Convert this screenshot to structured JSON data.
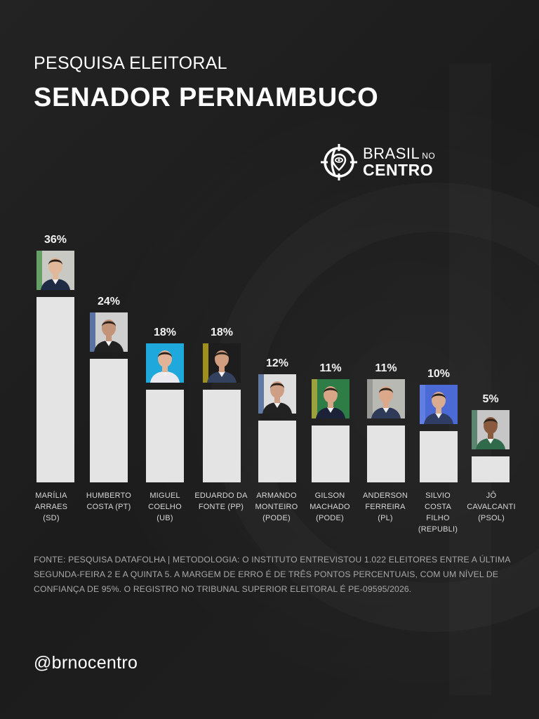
{
  "header": {
    "subtitle": "PESQUISA ELEITORAL",
    "title": "SENADOR PERNAMBUCO"
  },
  "logo": {
    "icon": "target-eye-pin-icon",
    "line1": "BRASIL",
    "line1_small": "NO",
    "line2": "CENTRO"
  },
  "candidates": [
    {
      "pct_label": "36%",
      "name_lines": [
        "MARÍLIA",
        "ARRAES",
        "(SD)"
      ],
      "photo_bg": "#c9c9c4",
      "photo_accent": "#3a8f3e",
      "photo_skin": "#e2b89a",
      "photo_suit": "#1f2a44"
    },
    {
      "pct_label": "24%",
      "name_lines": [
        "HUMBERTO",
        "COSTA (PT)"
      ],
      "photo_bg": "#cfcfcf",
      "photo_accent": "#2a4b8f",
      "photo_skin": "#c49478",
      "photo_suit": "#202020"
    },
    {
      "pct_label": "18%",
      "name_lines": [
        "MIGUEL",
        "COELHO",
        "(UB)"
      ],
      "photo_bg": "#1fa8dc",
      "photo_accent": "#1fa8dc",
      "photo_skin": "#e3b397",
      "photo_suit": "#e9e9ef"
    },
    {
      "pct_label": "18%",
      "name_lines": [
        "EDUARDO DA",
        "FONTE (PP)"
      ],
      "photo_bg": "#1d1d1d",
      "photo_accent": "#d6c21a",
      "photo_skin": "#d19e80",
      "photo_suit": "#33415e"
    },
    {
      "pct_label": "12%",
      "name_lines": [
        "ARMANDO",
        "MONTEIRO",
        "(PODE)"
      ],
      "photo_bg": "#dedede",
      "photo_accent": "#2d4f8a",
      "photo_skin": "#cf9f85",
      "photo_suit": "#222222"
    },
    {
      "pct_label": "11%",
      "name_lines": [
        "GILSON",
        "MACHADO",
        "(PODE)"
      ],
      "photo_bg": "#2f7d46",
      "photo_accent": "#c9b23a",
      "photo_skin": "#d8a587",
      "photo_suit": "#1c2338"
    },
    {
      "pct_label": "11%",
      "name_lines": [
        "ANDERSON",
        "FERREIRA",
        "(PL)"
      ],
      "photo_bg": "#b9b9b4",
      "photo_accent": "#8c8c88",
      "photo_skin": "#dba88c",
      "photo_suit": "#2e3a57"
    },
    {
      "pct_label": "10%",
      "name_lines": [
        "SILVIO",
        "COSTA",
        "FILHO",
        "(REPUBLI)"
      ],
      "photo_bg": "#4b6ad6",
      "photo_accent": "#6b88e8",
      "photo_skin": "#d9ab8f",
      "photo_suit": "#2f3c63"
    },
    {
      "pct_label": "5%",
      "name_lines": [
        "JÔ",
        "CAVALCANTI",
        "(PSOL)"
      ],
      "photo_bg": "#c6c6c6",
      "photo_accent": "#2f6b4a",
      "photo_skin": "#8a5a3e",
      "photo_suit": "#2f6b4a"
    }
  ],
  "chart_data": {
    "type": "bar",
    "title": "SENADOR PERNAMBUCO",
    "subtitle": "PESQUISA ELEITORAL",
    "xlabel": "",
    "ylabel": "",
    "categories": [
      "MARÍLIA ARRAES (SD)",
      "HUMBERTO COSTA (PT)",
      "MIGUEL COELHO (UB)",
      "EDUARDO DA FONTE (PP)",
      "ARMANDO MONTEIRO (PODE)",
      "GILSON MACHADO (PODE)",
      "ANDERSON FERREIRA (PL)",
      "SILVIO COSTA FILHO (REPUBLI)",
      "JÔ CAVALCANTI (PSOL)"
    ],
    "values": [
      36,
      24,
      18,
      18,
      12,
      11,
      11,
      10,
      5
    ],
    "unit": "%",
    "data_labels": true,
    "grid": false,
    "legend": null,
    "bar_color": "#e4e4e4"
  },
  "footnote": "FONTE: PESQUISA DATAFOLHA | METODOLOGIA: O INSTITUTO ENTREVISTOU 1.022 ELEITORES ENTRE A ÚLTIMA SEGUNDA-FEIRA 2 E A QUINTA 5. A MARGEM DE ERRO É DE TRÊS PONTOS PERCENTUAIS, COM UM NÍVEL DE CONFIANÇA DE 95%. O REGISTRO NO TRIBUNAL SUPERIOR ELEITORAL É PE-09595/2026.",
  "handle": "@brnocentro",
  "colors": {
    "background": "#1f1f1f",
    "text": "#ffffff",
    "bar": "#e4e4e4",
    "label": "#d8d8d8",
    "footnote": "#a8a8a8"
  }
}
